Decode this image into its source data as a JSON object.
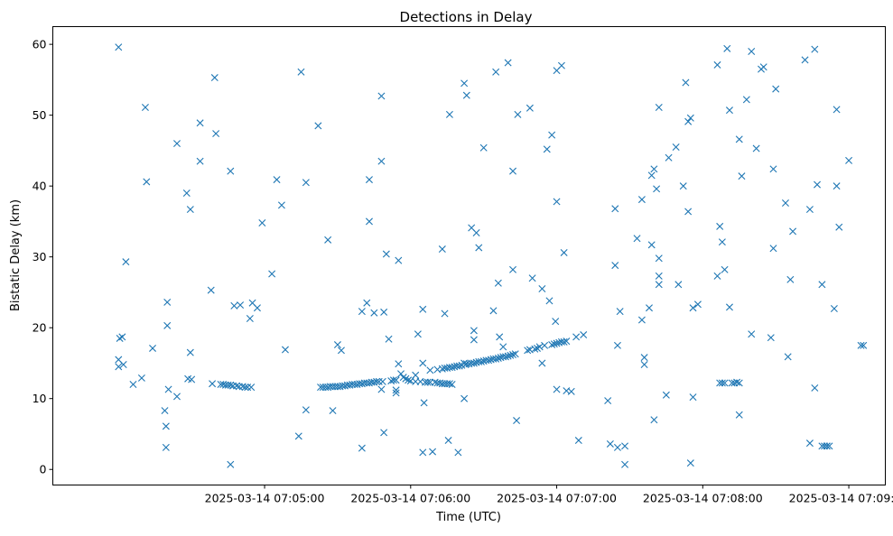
{
  "chart_data": {
    "type": "scatter",
    "title": "Detections in Delay",
    "xlabel": "Time (UTC)",
    "ylabel": "Bistatic Delay (km)",
    "x_unit": "seconds after 2025-03-14 07:04:00 UTC",
    "xlim": [
      -27,
      315
    ],
    "ylim": [
      -2.2,
      62.5
    ],
    "x_ticks": [
      {
        "value": 60,
        "label": "2025-03-14 07:05:00"
      },
      {
        "value": 120,
        "label": "2025-03-14 07:06:00"
      },
      {
        "value": 180,
        "label": "2025-03-14 07:07:00"
      },
      {
        "value": 240,
        "label": "2025-03-14 07:08:00"
      },
      {
        "value": 300,
        "label": "2025-03-14 07:09:00"
      }
    ],
    "y_ticks": [
      0,
      10,
      20,
      30,
      40,
      50,
      60
    ],
    "marker": "x",
    "color": "#1f77b4",
    "grid": false,
    "legend": "none",
    "series": [
      {
        "points": [
          [
            0,
            59.6
          ],
          [
            0,
            15.5
          ],
          [
            0,
            14.5
          ],
          [
            0.5,
            18.5
          ],
          [
            1.5,
            18.7
          ],
          [
            2,
            14.8
          ],
          [
            3,
            29.3
          ],
          [
            6,
            12
          ],
          [
            9.5,
            12.9
          ],
          [
            11,
            51.1
          ],
          [
            11.5,
            40.6
          ],
          [
            14,
            17.1
          ],
          [
            19,
            8.3
          ],
          [
            19.5,
            6.1
          ],
          [
            19.5,
            3.1
          ],
          [
            20,
            23.6
          ],
          [
            20,
            20.3
          ],
          [
            20.5,
            11.3
          ],
          [
            24,
            10.3
          ],
          [
            24,
            46
          ],
          [
            28,
            39
          ],
          [
            28.5,
            12.8
          ],
          [
            29.5,
            16.5
          ],
          [
            29.5,
            36.7
          ],
          [
            30,
            12.7
          ],
          [
            33.5,
            48.9
          ],
          [
            33.5,
            43.5
          ],
          [
            38,
            25.3
          ],
          [
            38.5,
            12.1
          ],
          [
            39.5,
            55.3
          ],
          [
            40,
            47.4
          ],
          [
            42,
            12
          ],
          [
            43,
            12
          ],
          [
            44,
            11.9
          ],
          [
            45,
            11.9
          ],
          [
            46,
            11.9
          ],
          [
            46,
            42.1
          ],
          [
            46,
            0.7
          ],
          [
            47,
            11.8
          ],
          [
            47.5,
            23.1
          ],
          [
            48.5,
            11.8
          ],
          [
            49.5,
            11.7
          ],
          [
            50,
            23.2
          ],
          [
            51,
            11.7
          ],
          [
            52,
            11.6
          ],
          [
            53,
            11.6
          ],
          [
            54,
            21.3
          ],
          [
            54.5,
            11.6
          ],
          [
            55,
            23.5
          ],
          [
            57,
            22.8
          ],
          [
            59,
            34.8
          ],
          [
            63,
            27.6
          ],
          [
            65,
            40.9
          ],
          [
            67,
            37.3
          ],
          [
            68.5,
            16.9
          ],
          [
            74,
            4.7
          ],
          [
            75,
            56.1
          ],
          [
            77,
            8.4
          ],
          [
            77,
            40.5
          ],
          [
            82,
            48.5
          ],
          [
            83,
            11.6
          ],
          [
            84,
            11.6
          ],
          [
            85,
            11.6
          ],
          [
            86,
            32.4
          ],
          [
            86,
            11.6
          ],
          [
            87,
            11.7
          ],
          [
            88,
            11.7
          ],
          [
            88,
            8.3
          ],
          [
            89,
            11.7
          ],
          [
            90,
            17.6
          ],
          [
            90,
            11.7
          ],
          [
            91,
            11.7
          ],
          [
            91.5,
            16.8
          ],
          [
            92,
            11.8
          ],
          [
            93,
            11.8
          ],
          [
            94,
            11.9
          ],
          [
            95,
            11.9
          ],
          [
            96,
            12
          ],
          [
            97,
            12
          ],
          [
            98,
            12
          ],
          [
            99,
            12.1
          ],
          [
            100,
            3
          ],
          [
            100,
            22.3
          ],
          [
            100,
            12.1
          ],
          [
            101,
            12.2
          ],
          [
            102,
            23.5
          ],
          [
            102,
            12.2
          ],
          [
            103,
            35
          ],
          [
            103,
            40.9
          ],
          [
            103,
            12.2
          ],
          [
            104,
            12.3
          ],
          [
            105,
            22.1
          ],
          [
            105,
            12.3
          ],
          [
            106,
            12.4
          ],
          [
            107,
            12.4
          ],
          [
            108,
            11.3
          ],
          [
            108,
            43.5
          ],
          [
            108,
            52.7
          ],
          [
            108.5,
            12.4
          ],
          [
            109,
            22.2
          ],
          [
            109,
            5.2
          ],
          [
            110,
            30.4
          ],
          [
            111,
            18.4
          ],
          [
            112,
            12.5
          ],
          [
            113,
            12.6
          ],
          [
            114,
            12.6
          ],
          [
            114,
            11.2
          ],
          [
            114,
            10.8
          ],
          [
            115,
            14.9
          ],
          [
            115,
            29.5
          ],
          [
            116,
            13.5
          ],
          [
            117,
            13
          ],
          [
            118,
            12.8
          ],
          [
            119,
            12.6
          ],
          [
            120,
            12.5
          ],
          [
            122,
            13.3
          ],
          [
            122,
            12.4
          ],
          [
            123,
            19.1
          ],
          [
            124,
            12.4
          ],
          [
            125,
            22.6
          ],
          [
            125,
            15
          ],
          [
            125,
            2.4
          ],
          [
            125.5,
            9.4
          ],
          [
            126,
            12.3
          ],
          [
            127,
            12.3
          ],
          [
            128,
            12.3
          ],
          [
            128,
            14
          ],
          [
            129,
            2.5
          ],
          [
            130,
            12.3
          ],
          [
            131,
            12.2
          ],
          [
            131,
            14.1
          ],
          [
            132,
            12.2
          ],
          [
            133,
            31.1
          ],
          [
            133,
            12.1
          ],
          [
            133,
            14.2
          ],
          [
            134,
            12.1
          ],
          [
            134,
            22
          ],
          [
            134,
            14.3
          ],
          [
            135,
            12.1
          ],
          [
            135,
            14.3
          ],
          [
            135.5,
            4.1
          ],
          [
            136,
            50.1
          ],
          [
            136,
            12.1
          ],
          [
            136,
            14.4
          ],
          [
            137,
            12
          ],
          [
            137,
            14.4
          ],
          [
            138,
            14.5
          ],
          [
            139,
            14.6
          ],
          [
            139.5,
            2.4
          ],
          [
            140,
            14.6
          ],
          [
            141,
            14.7
          ],
          [
            142,
            10
          ],
          [
            142,
            15
          ],
          [
            142,
            54.5
          ],
          [
            142.5,
            14.8
          ],
          [
            143,
            52.8
          ],
          [
            143,
            14.9
          ],
          [
            144,
            14.9
          ],
          [
            145,
            34.1
          ],
          [
            145,
            15
          ],
          [
            146,
            18.3
          ],
          [
            146,
            19.6
          ],
          [
            146,
            15
          ],
          [
            147,
            33.4
          ],
          [
            147,
            15.1
          ],
          [
            148,
            31.3
          ],
          [
            148,
            15.2
          ],
          [
            149,
            15.2
          ],
          [
            150,
            45.4
          ],
          [
            150,
            15.3
          ],
          [
            151,
            15.4
          ],
          [
            152,
            15.4
          ],
          [
            153,
            15.5
          ],
          [
            154,
            15.6
          ],
          [
            154,
            22.4
          ],
          [
            155,
            15.6
          ],
          [
            155,
            56.1
          ],
          [
            156,
            26.3
          ],
          [
            156,
            15.7
          ],
          [
            156.5,
            18.7
          ],
          [
            157,
            15.8
          ],
          [
            158,
            15.9
          ],
          [
            158,
            17.3
          ],
          [
            159,
            15.9
          ],
          [
            160,
            16
          ],
          [
            160,
            57.4
          ],
          [
            161,
            16.1
          ],
          [
            162,
            16.2
          ],
          [
            162,
            42.1
          ],
          [
            162,
            28.2
          ],
          [
            163,
            16.3
          ],
          [
            163.5,
            6.9
          ],
          [
            164,
            50.1
          ],
          [
            168,
            16.8
          ],
          [
            169,
            16.9
          ],
          [
            169,
            51
          ],
          [
            170,
            27
          ],
          [
            171,
            17
          ],
          [
            172,
            17.1
          ],
          [
            173,
            17.3
          ],
          [
            174,
            25.5
          ],
          [
            174,
            15
          ],
          [
            175,
            17.5
          ],
          [
            176,
            45.2
          ],
          [
            177,
            23.8
          ],
          [
            178,
            17.6
          ],
          [
            178,
            47.2
          ],
          [
            179,
            17.7
          ],
          [
            179.5,
            20.9
          ],
          [
            180,
            37.8
          ],
          [
            180,
            11.3
          ],
          [
            180,
            56.3
          ],
          [
            180,
            17.8
          ],
          [
            181,
            17.9
          ],
          [
            182,
            18
          ],
          [
            182,
            57
          ],
          [
            183,
            18
          ],
          [
            183,
            30.6
          ],
          [
            184,
            18.1
          ],
          [
            184,
            11.1
          ],
          [
            186,
            11
          ],
          [
            188,
            18.7
          ],
          [
            189,
            4.1
          ],
          [
            191,
            19
          ],
          [
            201,
            9.7
          ],
          [
            202,
            3.6
          ],
          [
            204,
            36.8
          ],
          [
            204,
            28.8
          ],
          [
            205,
            17.5
          ],
          [
            205,
            3.1
          ],
          [
            206,
            22.3
          ],
          [
            208,
            3.3
          ],
          [
            208,
            0.7
          ],
          [
            213,
            32.6
          ],
          [
            215,
            38.1
          ],
          [
            215,
            21.1
          ],
          [
            216,
            14.8
          ],
          [
            216,
            15.8
          ],
          [
            218,
            22.8
          ],
          [
            219,
            31.7
          ],
          [
            219,
            41.5
          ],
          [
            220,
            7
          ],
          [
            220,
            42.4
          ],
          [
            221,
            39.6
          ],
          [
            222,
            27.3
          ],
          [
            222,
            29.8
          ],
          [
            222,
            26.1
          ],
          [
            222,
            51.1
          ],
          [
            225,
            10.5
          ],
          [
            226,
            44
          ],
          [
            229,
            45.5
          ],
          [
            230,
            26.1
          ],
          [
            232,
            40
          ],
          [
            233,
            54.6
          ],
          [
            234,
            36.4
          ],
          [
            234,
            49.1
          ],
          [
            235,
            0.9
          ],
          [
            235,
            49.6
          ],
          [
            236,
            22.8
          ],
          [
            236,
            10.2
          ],
          [
            238,
            23.3
          ],
          [
            246,
            27.3
          ],
          [
            246,
            57.1
          ],
          [
            247,
            34.3
          ],
          [
            247,
            12.2
          ],
          [
            248,
            32.1
          ],
          [
            248,
            12.2
          ],
          [
            249,
            12.2
          ],
          [
            249,
            28.2
          ],
          [
            250,
            59.4
          ],
          [
            251,
            50.7
          ],
          [
            251,
            22.9
          ],
          [
            252,
            12.2
          ],
          [
            253,
            12.2
          ],
          [
            254,
            12.3
          ],
          [
            255,
            12.2
          ],
          [
            255,
            7.7
          ],
          [
            255,
            46.6
          ],
          [
            256,
            41.4
          ],
          [
            258,
            52.2
          ],
          [
            260,
            19.1
          ],
          [
            260,
            59
          ],
          [
            262,
            45.3
          ],
          [
            264,
            56.5
          ],
          [
            265,
            56.8
          ],
          [
            268,
            18.6
          ],
          [
            269,
            42.4
          ],
          [
            269,
            31.2
          ],
          [
            270,
            53.7
          ],
          [
            274,
            37.6
          ],
          [
            275,
            15.9
          ],
          [
            276,
            26.8
          ],
          [
            277,
            33.6
          ],
          [
            282,
            57.8
          ],
          [
            284,
            3.7
          ],
          [
            284,
            36.7
          ],
          [
            286,
            59.3
          ],
          [
            286,
            11.5
          ],
          [
            287,
            40.2
          ],
          [
            289,
            3.3
          ],
          [
            289,
            26.1
          ],
          [
            290,
            3.3
          ],
          [
            291,
            3.3
          ],
          [
            291,
            3.3
          ],
          [
            292,
            3.3
          ],
          [
            294,
            22.7
          ],
          [
            295,
            50.8
          ],
          [
            295,
            40
          ],
          [
            296,
            34.2
          ],
          [
            300,
            43.6
          ],
          [
            305,
            17.5
          ],
          [
            306,
            17.5
          ]
        ]
      }
    ]
  }
}
